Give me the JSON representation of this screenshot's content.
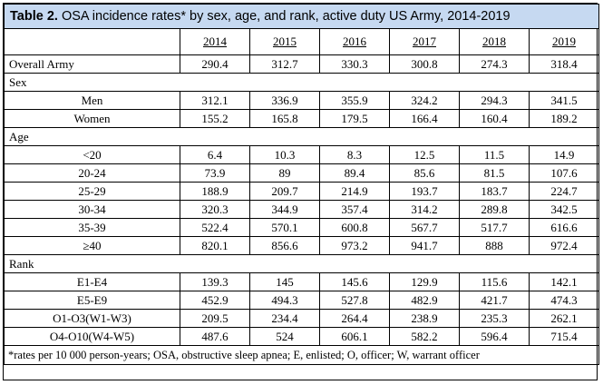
{
  "title": {
    "bold": "Table 2.",
    "rest": " OSA incidence rates* by sex, age, and rank, active duty US Army, 2014-2019"
  },
  "years": [
    "2014",
    "2015",
    "2016",
    "2017",
    "2018",
    "2019"
  ],
  "overall": {
    "label": "Overall Army",
    "values": [
      "290.4",
      "312.7",
      "330.3",
      "300.8",
      "274.3",
      "318.4"
    ]
  },
  "sections": [
    {
      "name": "Sex",
      "rows": [
        {
          "label": "Men",
          "values": [
            "312.1",
            "336.9",
            "355.9",
            "324.2",
            "294.3",
            "341.5"
          ]
        },
        {
          "label": "Women",
          "values": [
            "155.2",
            "165.8",
            "179.5",
            "166.4",
            "160.4",
            "189.2"
          ]
        }
      ]
    },
    {
      "name": "Age",
      "rows": [
        {
          "label": "<20",
          "values": [
            "6.4",
            "10.3",
            "8.3",
            "12.5",
            "11.5",
            "14.9"
          ]
        },
        {
          "label": "20-24",
          "values": [
            "73.9",
            "89",
            "89.4",
            "85.6",
            "81.5",
            "107.6"
          ]
        },
        {
          "label": "25-29",
          "values": [
            "188.9",
            "209.7",
            "214.9",
            "193.7",
            "183.7",
            "224.7"
          ]
        },
        {
          "label": "30-34",
          "values": [
            "320.3",
            "344.9",
            "357.4",
            "314.2",
            "289.8",
            "342.5"
          ]
        },
        {
          "label": "35-39",
          "values": [
            "522.4",
            "570.1",
            "600.8",
            "567.7",
            "517.7",
            "616.6"
          ]
        },
        {
          "label": "≥40",
          "values": [
            "820.1",
            "856.6",
            "973.2",
            "941.7",
            "888",
            "972.4"
          ]
        }
      ]
    },
    {
      "name": "Rank",
      "rows": [
        {
          "label": "E1-E4",
          "values": [
            "139.3",
            "145",
            "145.6",
            "129.9",
            "115.6",
            "142.1"
          ]
        },
        {
          "label": "E5-E9",
          "values": [
            "452.9",
            "494.3",
            "527.8",
            "482.9",
            "421.7",
            "474.3"
          ]
        },
        {
          "label": "O1-O3(W1-W3)",
          "values": [
            "209.5",
            "234.4",
            "264.4",
            "238.9",
            "235.3",
            "262.1"
          ]
        },
        {
          "label": "O4-O10(W4-W5)",
          "values": [
            "487.6",
            "524",
            "606.1",
            "582.2",
            "596.4",
            "715.4"
          ]
        }
      ]
    }
  ],
  "footnote": "*rates per 10 000 person-years; OSA, obstructive sleep apnea; E, enlisted; O, officer; W, warrant officer"
}
